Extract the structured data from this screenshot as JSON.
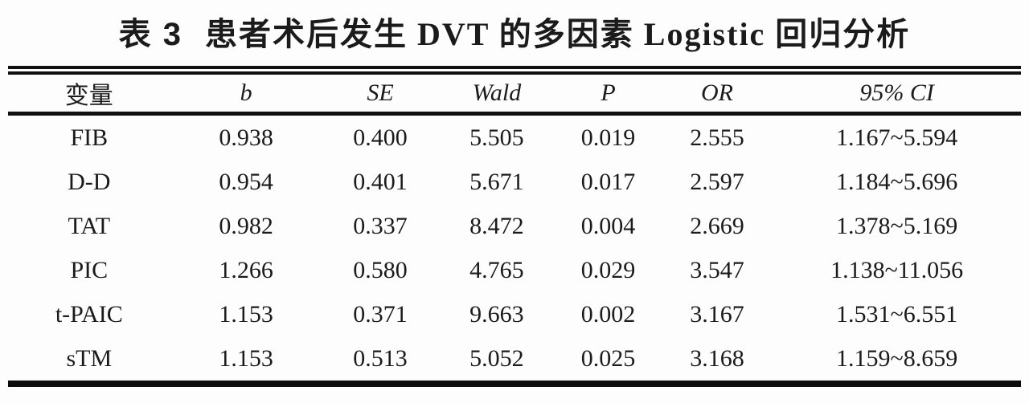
{
  "title": {
    "tag": "表 3",
    "text": "患者术后发生 DVT 的多因素 Logistic 回归分析"
  },
  "table": {
    "columns": [
      "变量",
      "b",
      "SE",
      "Wald",
      "P",
      "OR",
      "95% CI"
    ],
    "rows": [
      [
        "FIB",
        "0.938",
        "0.400",
        "5.505",
        "0.019",
        "2.555",
        "1.167~5.594"
      ],
      [
        "D-D",
        "0.954",
        "0.401",
        "5.671",
        "0.017",
        "2.597",
        "1.184~5.696"
      ],
      [
        "TAT",
        "0.982",
        "0.337",
        "8.472",
        "0.004",
        "2.669",
        "1.378~5.169"
      ],
      [
        "PIC",
        "1.266",
        "0.580",
        "4.765",
        "0.029",
        "3.547",
        "1.138~11.056"
      ],
      [
        "t-PAIC",
        "1.153",
        "0.371",
        "9.663",
        "0.002",
        "3.167",
        "1.531~6.551"
      ],
      [
        "sTM",
        "1.153",
        "0.513",
        "5.052",
        "0.025",
        "3.168",
        "1.159~8.659"
      ]
    ]
  },
  "colors": {
    "background": "#fdfdfd",
    "text": "#1b1b1b",
    "rule": "#101010"
  }
}
